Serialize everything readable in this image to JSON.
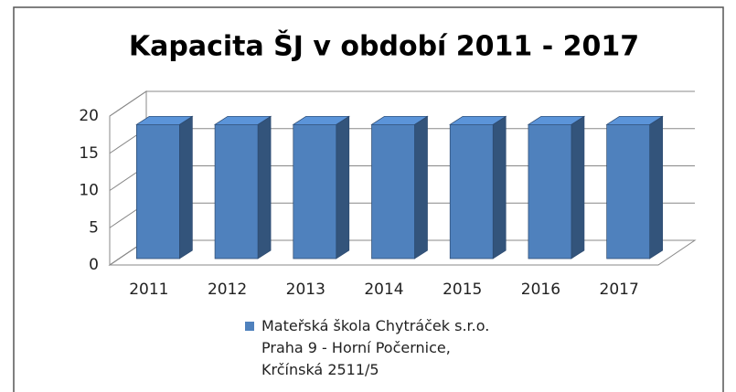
{
  "chart_data": {
    "type": "bar3d",
    "title": "Kapacita ŠJ v období 2011 - 2017",
    "categories": [
      "2011",
      "2012",
      "2013",
      "2014",
      "2015",
      "2016",
      "2017"
    ],
    "series": [
      {
        "name": "Mateřská škola Chytráček s.r.o.\nPraha 9 - Horní Počernice,\nKrčínská 2511/5",
        "color": "#4f81bd",
        "values": [
          18,
          18,
          18,
          18,
          18,
          18,
          18
        ]
      }
    ],
    "ylim": [
      0,
      20
    ],
    "yticks": [
      0,
      5,
      10,
      15,
      20
    ],
    "grid": true,
    "legend": "bottom"
  }
}
